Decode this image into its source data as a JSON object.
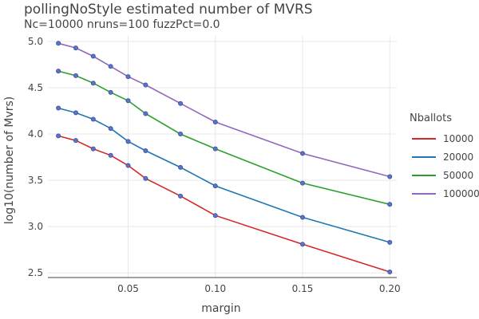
{
  "chart_data": {
    "type": "line",
    "title": "pollingNoStyle estimated number of MVRS",
    "subtitle": "Nc=10000 nruns=100 fuzzPct=0.0",
    "xlabel": "margin",
    "ylabel": "log10(number of Mvrs)",
    "xlim": [
      0.004,
      0.204
    ],
    "ylim": [
      2.45,
      5.06
    ],
    "grid": true,
    "x_ticks": [
      "0.05",
      "0.10",
      "0.15",
      "0.20"
    ],
    "x_tick_values": [
      0.05,
      0.1,
      0.15,
      0.2
    ],
    "y_ticks": [
      "2.5",
      "3.0",
      "3.5",
      "4.0",
      "4.5",
      "5.0"
    ],
    "y_tick_values": [
      2.5,
      3.0,
      3.5,
      4.0,
      4.5,
      5.0
    ],
    "legend_title": "Nballots",
    "legend_position": "right",
    "x": [
      0.01,
      0.02,
      0.03,
      0.04,
      0.05,
      0.06,
      0.08,
      0.1,
      0.15,
      0.2
    ],
    "series": [
      {
        "name": "10000",
        "color": "#d62728",
        "values": [
          3.98,
          3.93,
          3.84,
          3.77,
          3.66,
          3.52,
          3.33,
          3.12,
          2.81,
          2.51
        ]
      },
      {
        "name": "20000",
        "color": "#1f77b4",
        "values": [
          4.28,
          4.23,
          4.16,
          4.06,
          3.92,
          3.82,
          3.64,
          3.44,
          3.1,
          2.83
        ]
      },
      {
        "name": "50000",
        "color": "#2ca02c",
        "values": [
          4.68,
          4.63,
          4.55,
          4.45,
          4.36,
          4.22,
          4.0,
          3.84,
          3.47,
          3.24
        ]
      },
      {
        "name": "100000",
        "color": "#9467bd",
        "values": [
          4.98,
          4.93,
          4.84,
          4.73,
          4.62,
          4.53,
          4.33,
          4.13,
          3.79,
          3.54
        ]
      }
    ],
    "marker_color": "#5a74c9"
  }
}
